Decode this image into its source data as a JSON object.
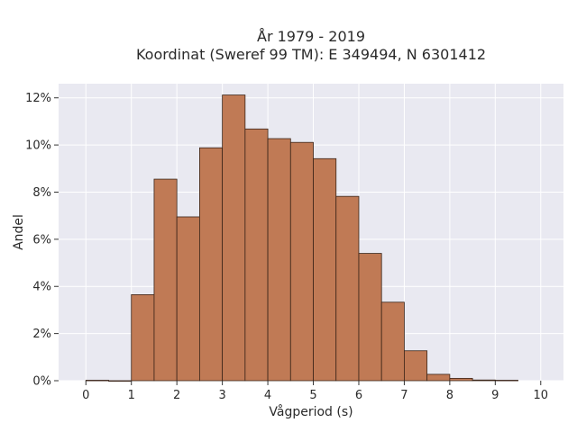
{
  "chart_data": {
    "type": "bar",
    "title_line1": "År 1979 - 2019",
    "title_line2": "Koordinat (Sweref 99 TM): E 349494, N 6301412",
    "xlabel": "Vågperiod (s)",
    "ylabel": "Andel",
    "bin_width": 0.5,
    "bins": [
      {
        "start": 0.0,
        "value": 0.02
      },
      {
        "start": 0.5,
        "value": 0.0
      },
      {
        "start": 1.0,
        "value": 3.65
      },
      {
        "start": 1.5,
        "value": 8.55
      },
      {
        "start": 2.0,
        "value": 6.95
      },
      {
        "start": 2.5,
        "value": 9.88
      },
      {
        "start": 3.0,
        "value": 12.12
      },
      {
        "start": 3.5,
        "value": 10.68
      },
      {
        "start": 4.0,
        "value": 10.27
      },
      {
        "start": 4.5,
        "value": 10.11
      },
      {
        "start": 5.0,
        "value": 9.42
      },
      {
        "start": 5.5,
        "value": 7.82
      },
      {
        "start": 6.0,
        "value": 5.4
      },
      {
        "start": 6.5,
        "value": 3.33
      },
      {
        "start": 7.0,
        "value": 1.27
      },
      {
        "start": 7.5,
        "value": 0.27
      },
      {
        "start": 8.0,
        "value": 0.1
      },
      {
        "start": 8.5,
        "value": 0.03
      },
      {
        "start": 9.0,
        "value": 0.02
      }
    ],
    "xlim": [
      -0.6,
      10.5
    ],
    "ylim": [
      0,
      12.6
    ],
    "xticks": [
      "0",
      "1",
      "2",
      "3",
      "4",
      "5",
      "6",
      "7",
      "8",
      "9",
      "10"
    ],
    "xtick_values": [
      0,
      1,
      2,
      3,
      4,
      5,
      6,
      7,
      8,
      9,
      10
    ],
    "yticks": [
      "0%",
      "2%",
      "4%",
      "6%",
      "8%",
      "10%",
      "12%"
    ],
    "ytick_values": [
      0,
      2,
      4,
      6,
      8,
      10,
      12
    ],
    "grid": true,
    "colors": {
      "plot_bg": "#e9e9f1",
      "grid": "#ffffff",
      "bar_fill": "#c07a55",
      "bar_edge": "#3a2418"
    }
  }
}
